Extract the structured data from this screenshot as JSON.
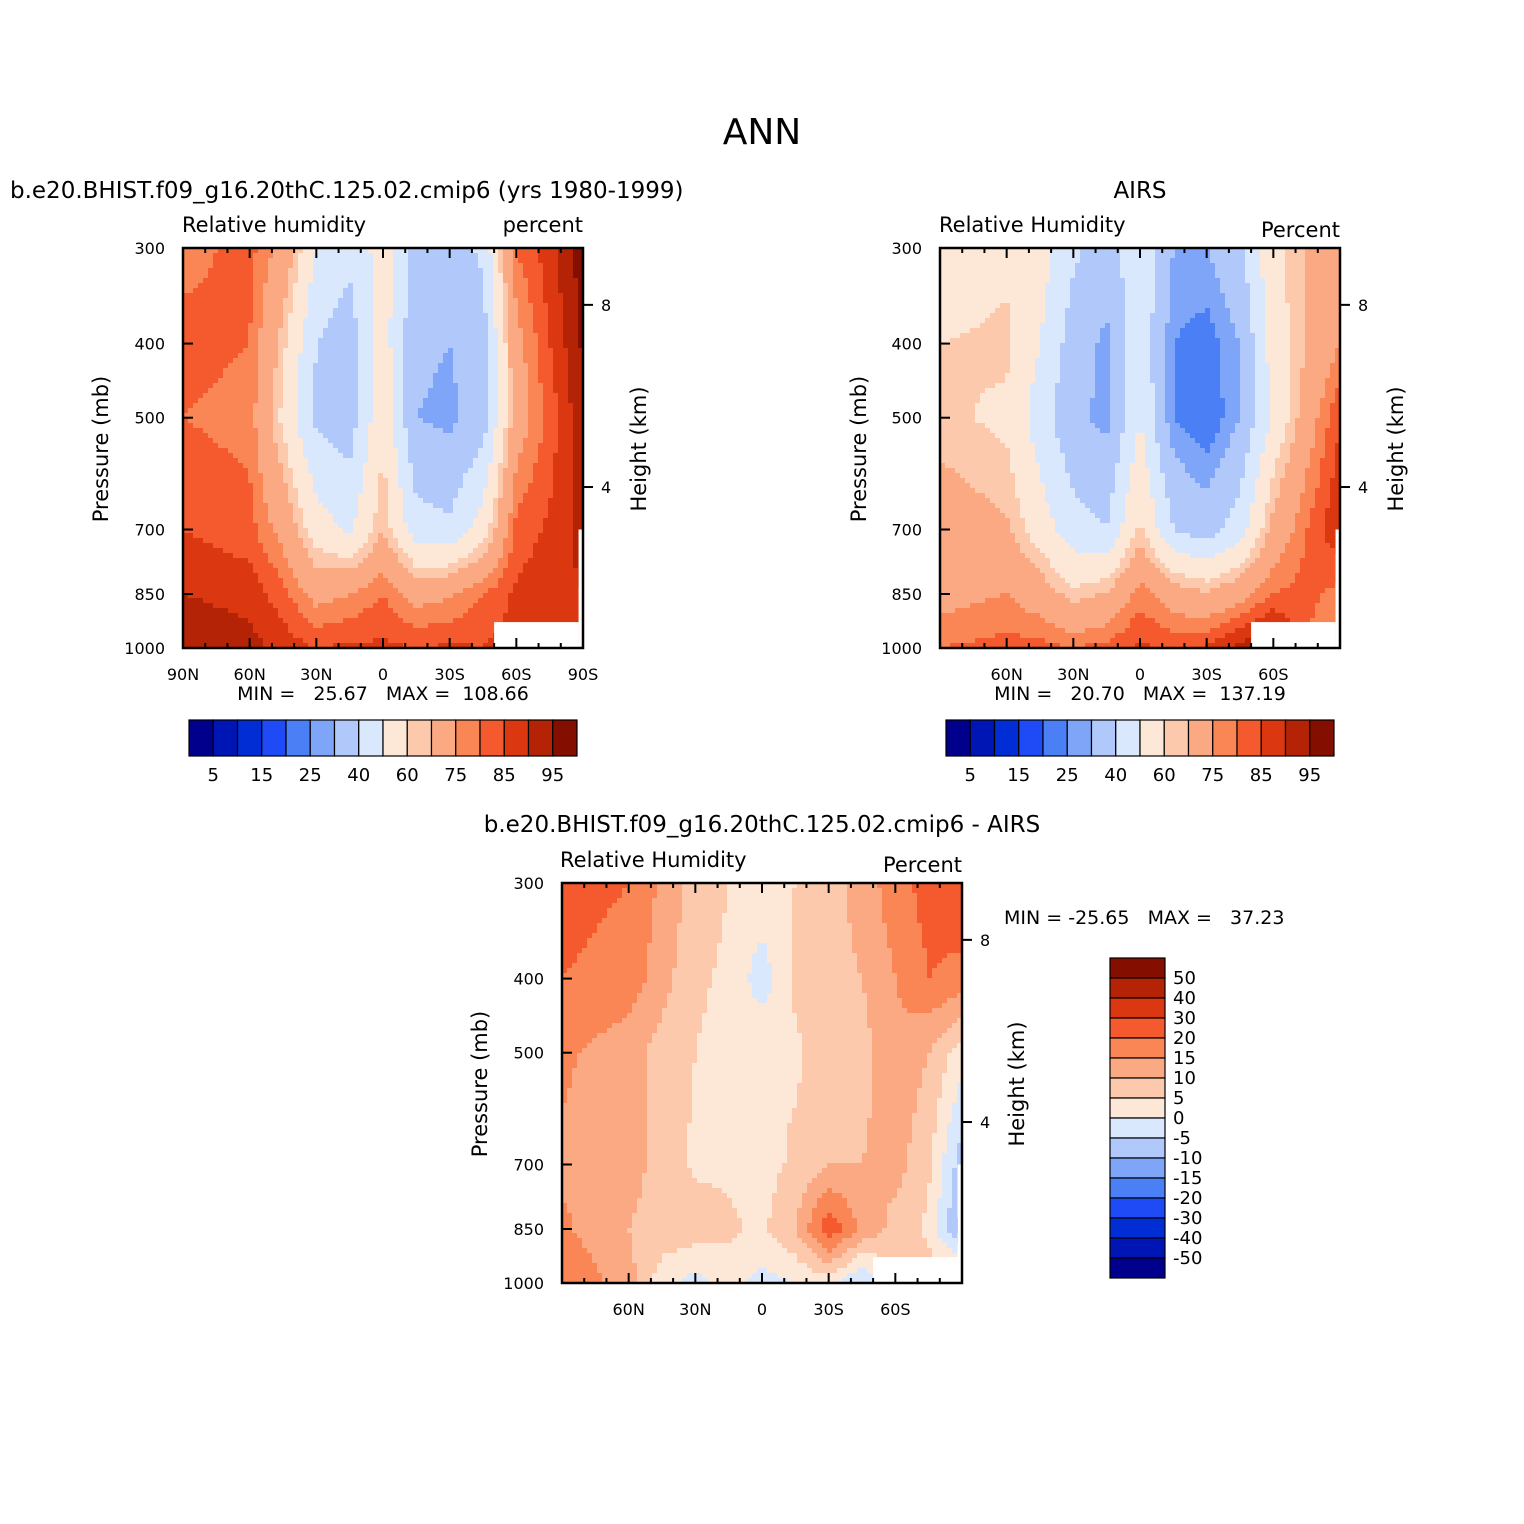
{
  "figure": {
    "title": "ANN"
  },
  "colors": {
    "seq": [
      "#00008c",
      "#0016b4",
      "#002ed4",
      "#1e4bf5",
      "#4a7ff5",
      "#7ea5f8",
      "#b0c8fa",
      "#d9e8fd",
      "#fde7d6",
      "#fcc9ad",
      "#fba983",
      "#fa8555",
      "#f55a2e",
      "#db3811",
      "#b52306",
      "#840f00"
    ],
    "div": [
      "#00008c",
      "#0016b4",
      "#002ed4",
      "#1e4bf5",
      "#4a7ff5",
      "#7ea5f8",
      "#b0c8fa",
      "#d9e8fd",
      "#fde7d6",
      "#fcc9ad",
      "#fba983",
      "#fa8555",
      "#f55a2e",
      "#db3811",
      "#b52306",
      "#840f00"
    ]
  },
  "chart_data": [
    {
      "id": "model",
      "type": "contour",
      "title": "b.e20.BHIST.f09_g16.20thC.125.02.cmip6 (yrs 1980-1999)",
      "left_label": "Relative humidity",
      "right_label": "percent",
      "ylabel": "Pressure (mb)",
      "ylabel_right": "Height (km)",
      "pressure_ticks": [
        "300",
        "400",
        "500",
        "700",
        "850",
        "1000"
      ],
      "height_ticks": [
        "8",
        "4"
      ],
      "x_ticks": [
        "90N",
        "60N",
        "30N",
        "0",
        "30S",
        "60S",
        "90S"
      ],
      "stats": "MIN =   25.67   MAX =  108.66",
      "colorbar_labels": [
        "5",
        "15",
        "25",
        "40",
        "60",
        "75",
        "85",
        "95"
      ],
      "grid": {
        "lat": [
          90,
          60,
          45,
          30,
          15,
          0,
          -15,
          -30,
          -45,
          -60,
          -75,
          -90
        ],
        "p": [
          300,
          400,
          500,
          700,
          850,
          1000
        ],
        "values": [
          [
            78,
            82,
            72,
            50,
            42,
            55,
            35,
            35,
            42,
            80,
            88,
            98
          ],
          [
            82,
            80,
            62,
            40,
            35,
            55,
            32,
            30,
            35,
            72,
            85,
            96
          ],
          [
            80,
            78,
            58,
            38,
            35,
            58,
            30,
            28,
            35,
            70,
            82,
            94
          ],
          [
            85,
            82,
            72,
            55,
            48,
            65,
            44,
            42,
            55,
            82,
            86,
            92
          ],
          [
            90,
            88,
            82,
            72,
            75,
            80,
            72,
            74,
            80,
            86,
            88,
            90
          ],
          [
            95,
            92,
            88,
            85,
            86,
            86,
            85,
            86,
            85,
            88,
            84,
            84
          ]
        ]
      }
    },
    {
      "id": "obs",
      "type": "contour",
      "title": "AIRS",
      "left_label": "Relative Humidity",
      "right_label": "Percent",
      "ylabel": "Pressure (mb)",
      "ylabel_right": "Height (km)",
      "pressure_ticks": [
        "300",
        "400",
        "500",
        "700",
        "850",
        "1000"
      ],
      "height_ticks": [
        "8",
        "4"
      ],
      "x_ticks": [
        "60N",
        "30N",
        "0",
        "30S",
        "60S"
      ],
      "stats": "MIN =   20.70   MAX =  137.19",
      "colorbar_labels": [
        "5",
        "15",
        "25",
        "40",
        "60",
        "75",
        "85",
        "95"
      ],
      "grid": {
        "lat": [
          90,
          60,
          45,
          30,
          15,
          0,
          -15,
          -30,
          -45,
          -60,
          -75,
          -90
        ],
        "p": [
          300,
          400,
          500,
          700,
          850,
          1000
        ],
        "values": [
          [
            50,
            58,
            55,
            42,
            35,
            48,
            30,
            30,
            38,
            58,
            65,
            70
          ],
          [
            60,
            62,
            50,
            35,
            28,
            48,
            25,
            22,
            30,
            55,
            65,
            75
          ],
          [
            62,
            58,
            45,
            32,
            28,
            50,
            25,
            20,
            30,
            52,
            70,
            85
          ],
          [
            70,
            66,
            55,
            44,
            40,
            62,
            40,
            35,
            45,
            68,
            80,
            90
          ],
          [
            72,
            75,
            70,
            62,
            66,
            78,
            70,
            66,
            72,
            80,
            82,
            78
          ],
          [
            80,
            82,
            82,
            80,
            82,
            86,
            84,
            86,
            92,
            98,
            80,
            72
          ]
        ]
      }
    },
    {
      "id": "diff",
      "type": "contour",
      "title": "b.e20.BHIST.f09_g16.20thC.125.02.cmip6 - AIRS",
      "left_label": "Relative Humidity",
      "right_label": "Percent",
      "ylabel": "Pressure (mb)",
      "ylabel_right": "Height (km)",
      "pressure_ticks": [
        "300",
        "400",
        "500",
        "700",
        "850",
        "1000"
      ],
      "height_ticks": [
        "8",
        "4"
      ],
      "x_ticks": [
        "60N",
        "30N",
        "0",
        "30S",
        "60S"
      ],
      "stats": "MIN = -25.65   MAX =   37.23",
      "colorbar_labels": [
        "50",
        "40",
        "30",
        "20",
        "15",
        "10",
        "5",
        "0",
        "-5",
        "-10",
        "-15",
        "-20",
        "-30",
        "-40",
        "-50"
      ],
      "grid": {
        "lat": [
          90,
          60,
          45,
          30,
          15,
          0,
          -15,
          -30,
          -45,
          -60,
          -75,
          -90
        ],
        "p": [
          300,
          400,
          500,
          700,
          850,
          1000
        ],
        "values": [
          [
            22,
            20,
            14,
            8,
            5,
            4,
            5,
            8,
            12,
            18,
            22,
            25
          ],
          [
            20,
            18,
            12,
            6,
            4,
            -3,
            6,
            8,
            10,
            15,
            20,
            18
          ],
          [
            16,
            12,
            8,
            5,
            3,
            5,
            4,
            8,
            8,
            14,
            10,
            2
          ],
          [
            14,
            12,
            8,
            4,
            4,
            3,
            6,
            10,
            10,
            12,
            6,
            -8
          ],
          [
            16,
            10,
            8,
            8,
            6,
            4,
            10,
            24,
            14,
            8,
            4,
            -12
          ],
          [
            20,
            12,
            2,
            -2,
            2,
            -2,
            0,
            2,
            -6,
            4,
            8,
            10
          ]
        ]
      }
    }
  ]
}
